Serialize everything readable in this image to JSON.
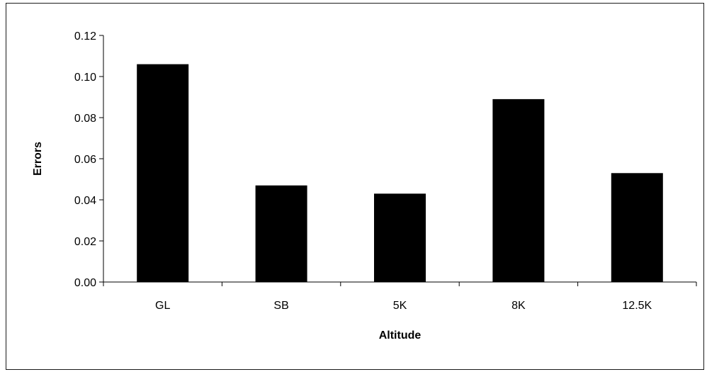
{
  "chart_data": {
    "type": "bar",
    "title": "",
    "xlabel": "Altitude",
    "ylabel": "Errors",
    "categories": [
      "GL",
      "SB",
      "5K",
      "8K",
      "12.5K"
    ],
    "values": [
      0.106,
      0.047,
      0.043,
      0.089,
      0.053
    ],
    "ylim": [
      0,
      0.12
    ],
    "yticks": [
      0.0,
      0.02,
      0.04,
      0.06,
      0.08,
      0.1,
      0.12
    ],
    "ytick_labels": [
      "0.00",
      "0.02",
      "0.04",
      "0.06",
      "0.08",
      "0.10",
      "0.12"
    ],
    "bar_color": "#000000",
    "grid": false,
    "legend": "none"
  }
}
